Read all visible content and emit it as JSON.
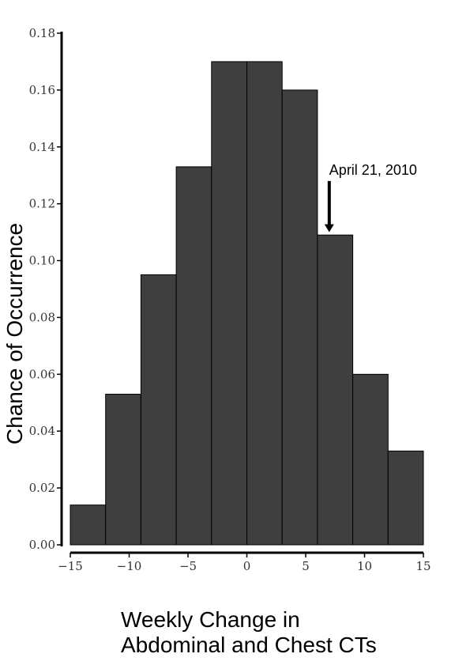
{
  "chart_data": {
    "type": "bar",
    "title": "",
    "xlabel_lines": [
      "Weekly Change in",
      "Abdominal and Chest CTs"
    ],
    "ylabel": "Chance of Occurrence",
    "bin_edges": [
      -15,
      -12,
      -9,
      -6,
      -3,
      0,
      3,
      6,
      9,
      12,
      15
    ],
    "values": [
      0.014,
      0.053,
      0.095,
      0.133,
      0.17,
      0.17,
      0.16,
      0.109,
      0.06,
      0.033
    ],
    "xlim": [
      -15,
      15
    ],
    "ylim": [
      0,
      0.18
    ],
    "xticks": [
      -15,
      -10,
      -5,
      0,
      5,
      10,
      15
    ],
    "xtick_labels": [
      "−15",
      "−10",
      "−5",
      "0",
      "5",
      "10",
      "15"
    ],
    "yticks": [
      0,
      0.02,
      0.04,
      0.06,
      0.08,
      0.1,
      0.12,
      0.14,
      0.16,
      0.18
    ],
    "ytick_labels": [
      "0.00",
      "0.02",
      "0.04",
      "0.06",
      "0.08",
      "0.10",
      "0.12",
      "0.14",
      "0.16",
      "0.18"
    ],
    "bar_color": "#3f3f3f",
    "bar_edge_color": "#000000",
    "grid": false,
    "annotation": {
      "text": "April 21, 2010",
      "x": 7,
      "y": 0.128,
      "arrow_to_y": 0.11
    }
  }
}
